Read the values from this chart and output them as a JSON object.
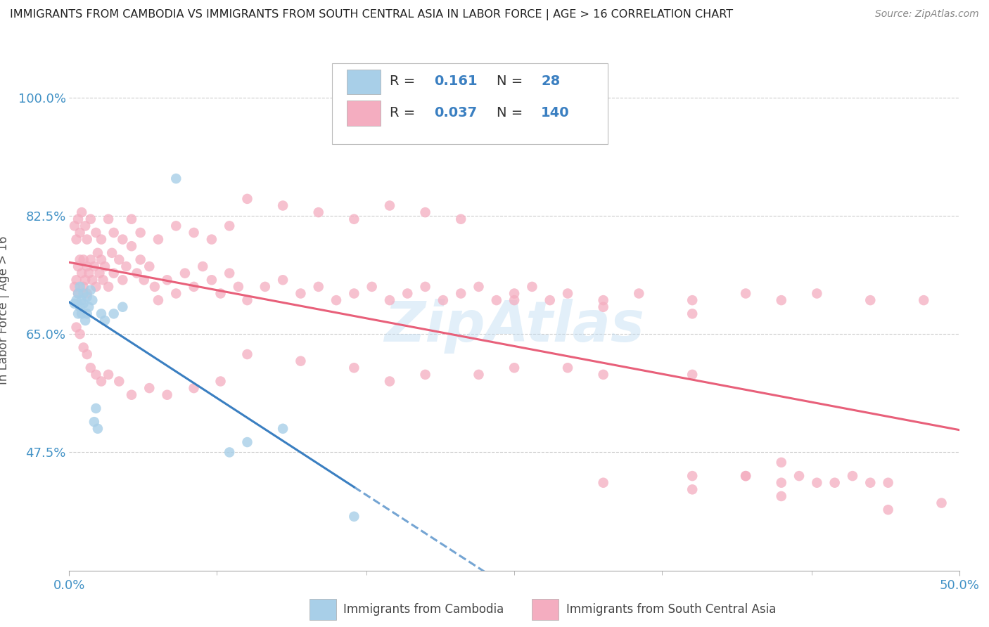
{
  "title": "IMMIGRANTS FROM CAMBODIA VS IMMIGRANTS FROM SOUTH CENTRAL ASIA IN LABOR FORCE | AGE > 16 CORRELATION CHART",
  "source": "Source: ZipAtlas.com",
  "ylabel": "In Labor Force | Age > 16",
  "xlim": [
    0.0,
    0.5
  ],
  "ylim": [
    0.3,
    1.07
  ],
  "xtick_vals": [
    0.0,
    0.5
  ],
  "xtick_labels": [
    "0.0%",
    "50.0%"
  ],
  "ytick_vals": [
    0.475,
    0.65,
    0.825,
    1.0
  ],
  "ytick_labels": [
    "47.5%",
    "65.0%",
    "82.5%",
    "100.0%"
  ],
  "legend_R1": "0.161",
  "legend_N1": "28",
  "legend_R2": "0.037",
  "legend_N2": "140",
  "blue_dot_color": "#a8cfe8",
  "pink_dot_color": "#f4adc0",
  "blue_line_color": "#3a7fc1",
  "pink_line_color": "#e8607a",
  "watermark_color": "#b8d8f0",
  "legend_blue": "#a8cfe8",
  "legend_pink": "#f4adc0",
  "cambodia_x": [
    0.003,
    0.004,
    0.005,
    0.005,
    0.006,
    0.006,
    0.007,
    0.007,
    0.008,
    0.008,
    0.009,
    0.01,
    0.01,
    0.011,
    0.012,
    0.013,
    0.014,
    0.015,
    0.016,
    0.018,
    0.02,
    0.025,
    0.03,
    0.06,
    0.09,
    0.1,
    0.12,
    0.16
  ],
  "cambodia_y": [
    0.695,
    0.7,
    0.68,
    0.71,
    0.69,
    0.72,
    0.7,
    0.68,
    0.71,
    0.695,
    0.67,
    0.705,
    0.68,
    0.69,
    0.715,
    0.7,
    0.52,
    0.54,
    0.51,
    0.68,
    0.67,
    0.68,
    0.69,
    0.88,
    0.475,
    0.49,
    0.51,
    0.38
  ],
  "sca_x": [
    0.003,
    0.004,
    0.005,
    0.005,
    0.006,
    0.007,
    0.008,
    0.008,
    0.009,
    0.01,
    0.01,
    0.011,
    0.012,
    0.013,
    0.014,
    0.015,
    0.016,
    0.017,
    0.018,
    0.019,
    0.02,
    0.022,
    0.024,
    0.025,
    0.028,
    0.03,
    0.032,
    0.035,
    0.038,
    0.04,
    0.042,
    0.045,
    0.048,
    0.05,
    0.055,
    0.06,
    0.065,
    0.07,
    0.075,
    0.08,
    0.085,
    0.09,
    0.095,
    0.1,
    0.11,
    0.12,
    0.13,
    0.14,
    0.15,
    0.16,
    0.17,
    0.18,
    0.19,
    0.2,
    0.21,
    0.22,
    0.23,
    0.24,
    0.25,
    0.26,
    0.27,
    0.28,
    0.3,
    0.32,
    0.35,
    0.38,
    0.4,
    0.42,
    0.45,
    0.48,
    0.003,
    0.004,
    0.005,
    0.006,
    0.007,
    0.009,
    0.01,
    0.012,
    0.015,
    0.018,
    0.022,
    0.025,
    0.03,
    0.035,
    0.04,
    0.05,
    0.06,
    0.07,
    0.08,
    0.09,
    0.1,
    0.12,
    0.14,
    0.16,
    0.18,
    0.2,
    0.22,
    0.25,
    0.3,
    0.35,
    0.004,
    0.006,
    0.008,
    0.01,
    0.012,
    0.015,
    0.018,
    0.022,
    0.028,
    0.035,
    0.045,
    0.055,
    0.07,
    0.085,
    0.1,
    0.13,
    0.16,
    0.2,
    0.25,
    0.3,
    0.18,
    0.23,
    0.28,
    0.35,
    0.4,
    0.44,
    0.4,
    0.45,
    0.3,
    0.35,
    0.38,
    0.42,
    0.46,
    0.38,
    0.41,
    0.43,
    0.46,
    0.49,
    0.35,
    0.4
  ],
  "sca_y": [
    0.72,
    0.73,
    0.75,
    0.71,
    0.76,
    0.74,
    0.72,
    0.76,
    0.73,
    0.75,
    0.71,
    0.74,
    0.76,
    0.73,
    0.75,
    0.72,
    0.77,
    0.74,
    0.76,
    0.73,
    0.75,
    0.72,
    0.77,
    0.74,
    0.76,
    0.73,
    0.75,
    0.78,
    0.74,
    0.76,
    0.73,
    0.75,
    0.72,
    0.7,
    0.73,
    0.71,
    0.74,
    0.72,
    0.75,
    0.73,
    0.71,
    0.74,
    0.72,
    0.7,
    0.72,
    0.73,
    0.71,
    0.72,
    0.7,
    0.71,
    0.72,
    0.7,
    0.71,
    0.72,
    0.7,
    0.71,
    0.72,
    0.7,
    0.71,
    0.72,
    0.7,
    0.71,
    0.7,
    0.71,
    0.7,
    0.71,
    0.7,
    0.71,
    0.7,
    0.7,
    0.81,
    0.79,
    0.82,
    0.8,
    0.83,
    0.81,
    0.79,
    0.82,
    0.8,
    0.79,
    0.82,
    0.8,
    0.79,
    0.82,
    0.8,
    0.79,
    0.81,
    0.8,
    0.79,
    0.81,
    0.85,
    0.84,
    0.83,
    0.82,
    0.84,
    0.83,
    0.82,
    0.7,
    0.69,
    0.68,
    0.66,
    0.65,
    0.63,
    0.62,
    0.6,
    0.59,
    0.58,
    0.59,
    0.58,
    0.56,
    0.57,
    0.56,
    0.57,
    0.58,
    0.62,
    0.61,
    0.6,
    0.59,
    0.6,
    0.59,
    0.58,
    0.59,
    0.6,
    0.59,
    0.46,
    0.44,
    0.43,
    0.43,
    0.43,
    0.44,
    0.44,
    0.43,
    0.43,
    0.44,
    0.44,
    0.43,
    0.39,
    0.4,
    0.42,
    0.41
  ]
}
